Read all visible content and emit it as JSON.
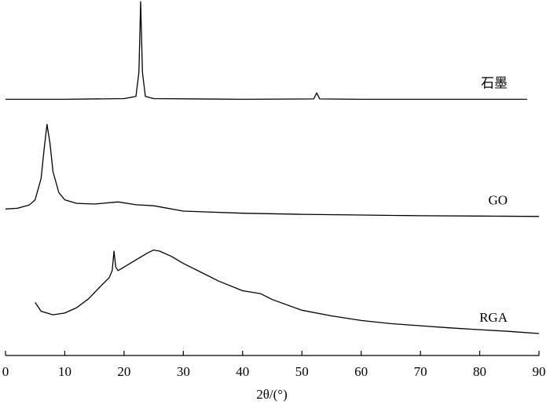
{
  "chart_data": {
    "type": "line",
    "x_label": "2θ/(°)",
    "xlim": [
      0,
      90
    ],
    "xticks": [
      0,
      10,
      20,
      30,
      40,
      50,
      60,
      70,
      80,
      90
    ],
    "ylim": [
      0,
      100
    ],
    "grid": false,
    "series": [
      {
        "name": "石墨",
        "color": "#000000",
        "x": [
          0,
          10,
          20,
          22,
          22.5,
          22.8,
          23.1,
          23.6,
          25,
          40,
          52,
          52.5,
          53,
          60,
          70,
          80,
          88
        ],
        "values": [
          72.4,
          72.4,
          72.6,
          73.2,
          80,
          100,
          80,
          73.2,
          72.6,
          72.4,
          72.5,
          74.2,
          72.5,
          72.4,
          72.4,
          72.4,
          72.4
        ]
      },
      {
        "name": "GO",
        "color": "#000000",
        "x": [
          0,
          2,
          4,
          5,
          6,
          6.5,
          7,
          7.5,
          8,
          9,
          10,
          12,
          15,
          19,
          22,
          25,
          30,
          40,
          50,
          60,
          70,
          80,
          90
        ],
        "values": [
          41.4,
          41.6,
          42.5,
          44,
          50,
          58,
          65.3,
          60,
          52,
          46,
          44,
          43,
          42.8,
          43.4,
          42.6,
          42.3,
          40.8,
          40.2,
          39.9,
          39.7,
          39.5,
          39.4,
          39.3
        ]
      },
      {
        "name": "RGA",
        "color": "#000000",
        "x": [
          5,
          6,
          8,
          10,
          12,
          14,
          16,
          17.5,
          18,
          18.3,
          18.6,
          19,
          20,
          22,
          24,
          25,
          26,
          28,
          30,
          33,
          36,
          40,
          43,
          45,
          50,
          55,
          60,
          65,
          70,
          75,
          80,
          85,
          90
        ],
        "values": [
          15,
          12.5,
          11.5,
          12,
          13.5,
          16,
          19.5,
          22,
          24,
          29.5,
          25,
          24,
          25,
          27,
          29,
          29.8,
          29.5,
          28,
          26,
          23.5,
          21,
          18.3,
          17.5,
          15.8,
          12.8,
          11.2,
          9.9,
          9,
          8.4,
          7.8,
          7.3,
          6.8,
          6.2
        ]
      }
    ]
  }
}
